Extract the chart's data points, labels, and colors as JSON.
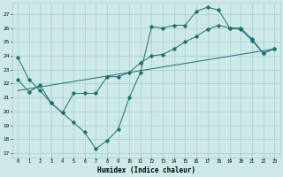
{
  "bg_color": "#cde9e8",
  "grid_color": "#a8cccb",
  "line_color": "#1a6e6e",
  "xlim": [
    -0.5,
    23.5
  ],
  "ylim": [
    16.7,
    27.8
  ],
  "yticks": [
    17,
    18,
    19,
    20,
    21,
    22,
    23,
    24,
    25,
    26,
    27
  ],
  "xticks": [
    0,
    1,
    2,
    3,
    4,
    5,
    6,
    7,
    8,
    9,
    10,
    11,
    12,
    13,
    14,
    15,
    16,
    17,
    18,
    19,
    20,
    21,
    22,
    23
  ],
  "xlabel": "Humidex (Indice chaleur)",
  "line1_x": [
    0,
    1,
    2,
    3,
    4,
    5,
    6,
    7,
    8,
    9,
    10,
    11,
    12,
    13,
    14,
    15,
    16,
    17,
    18,
    19,
    20,
    21,
    22,
    23
  ],
  "line1_y": [
    23.9,
    22.3,
    21.5,
    20.6,
    19.9,
    19.2,
    18.5,
    17.3,
    17.9,
    18.7,
    21.0,
    22.8,
    26.1,
    26.0,
    26.2,
    26.2,
    27.2,
    27.5,
    27.3,
    26.0,
    25.9,
    25.1,
    24.2,
    24.5
  ],
  "line2_x": [
    0,
    1,
    2,
    3,
    4,
    5,
    6,
    7,
    8,
    9,
    10,
    11,
    12,
    13,
    14,
    15,
    16,
    17,
    18,
    19,
    20,
    21,
    22,
    23
  ],
  "line2_y": [
    22.3,
    21.4,
    21.9,
    20.6,
    19.9,
    21.3,
    21.3,
    21.3,
    22.5,
    22.5,
    22.8,
    23.5,
    24.0,
    24.1,
    24.5,
    25.0,
    25.4,
    25.9,
    26.2,
    26.0,
    26.0,
    25.2,
    24.2,
    24.5
  ],
  "line3_x": [
    0,
    23
  ],
  "line3_y": [
    21.5,
    24.5
  ]
}
